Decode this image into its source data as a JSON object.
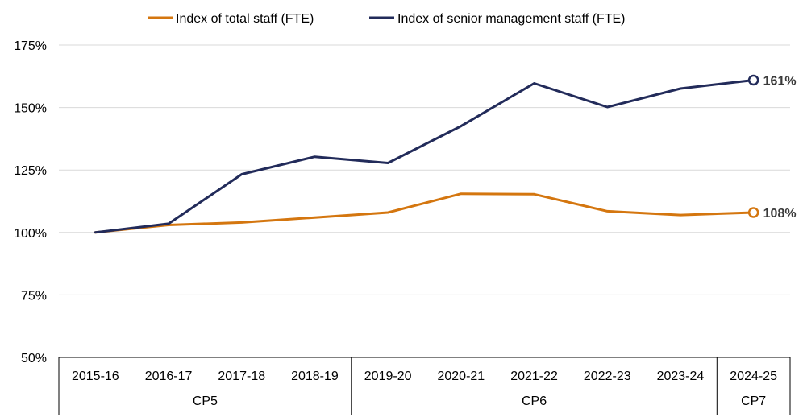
{
  "chart_data": {
    "type": "line",
    "title": "",
    "xlabel": "",
    "ylabel": "",
    "categories": [
      "2015-16",
      "2016-17",
      "2017-18",
      "2018-19",
      "2019-20",
      "2020-21",
      "2021-22",
      "2022-23",
      "2023-24",
      "2024-25"
    ],
    "groups": [
      {
        "label": "CP5",
        "from": 0,
        "to": 3
      },
      {
        "label": "CP6",
        "from": 4,
        "to": 8
      },
      {
        "label": "CP7",
        "from": 9,
        "to": 9
      }
    ],
    "yticks": [
      {
        "value": 50,
        "label": "50%"
      },
      {
        "value": 75,
        "label": "75%"
      },
      {
        "value": 100,
        "label": "100%"
      },
      {
        "value": 125,
        "label": "125%"
      },
      {
        "value": 150,
        "label": "150%"
      },
      {
        "value": 175,
        "label": "175%"
      }
    ],
    "ylim": [
      50,
      175
    ],
    "grid": true,
    "legend_position": "top",
    "series": [
      {
        "name": "Index of total staff (FTE)",
        "color": "#D4760F",
        "values": [
          100,
          103,
          104,
          106,
          108,
          115.5,
          115.3,
          108.5,
          107,
          108
        ],
        "end_label": "108%"
      },
      {
        "name": "Index of senior management staff (FTE)",
        "color": "#222B5A",
        "values": [
          100,
          103.5,
          123.3,
          130.3,
          127.8,
          142.6,
          159.7,
          150.2,
          157.6,
          161
        ],
        "end_label": "161%"
      }
    ]
  }
}
